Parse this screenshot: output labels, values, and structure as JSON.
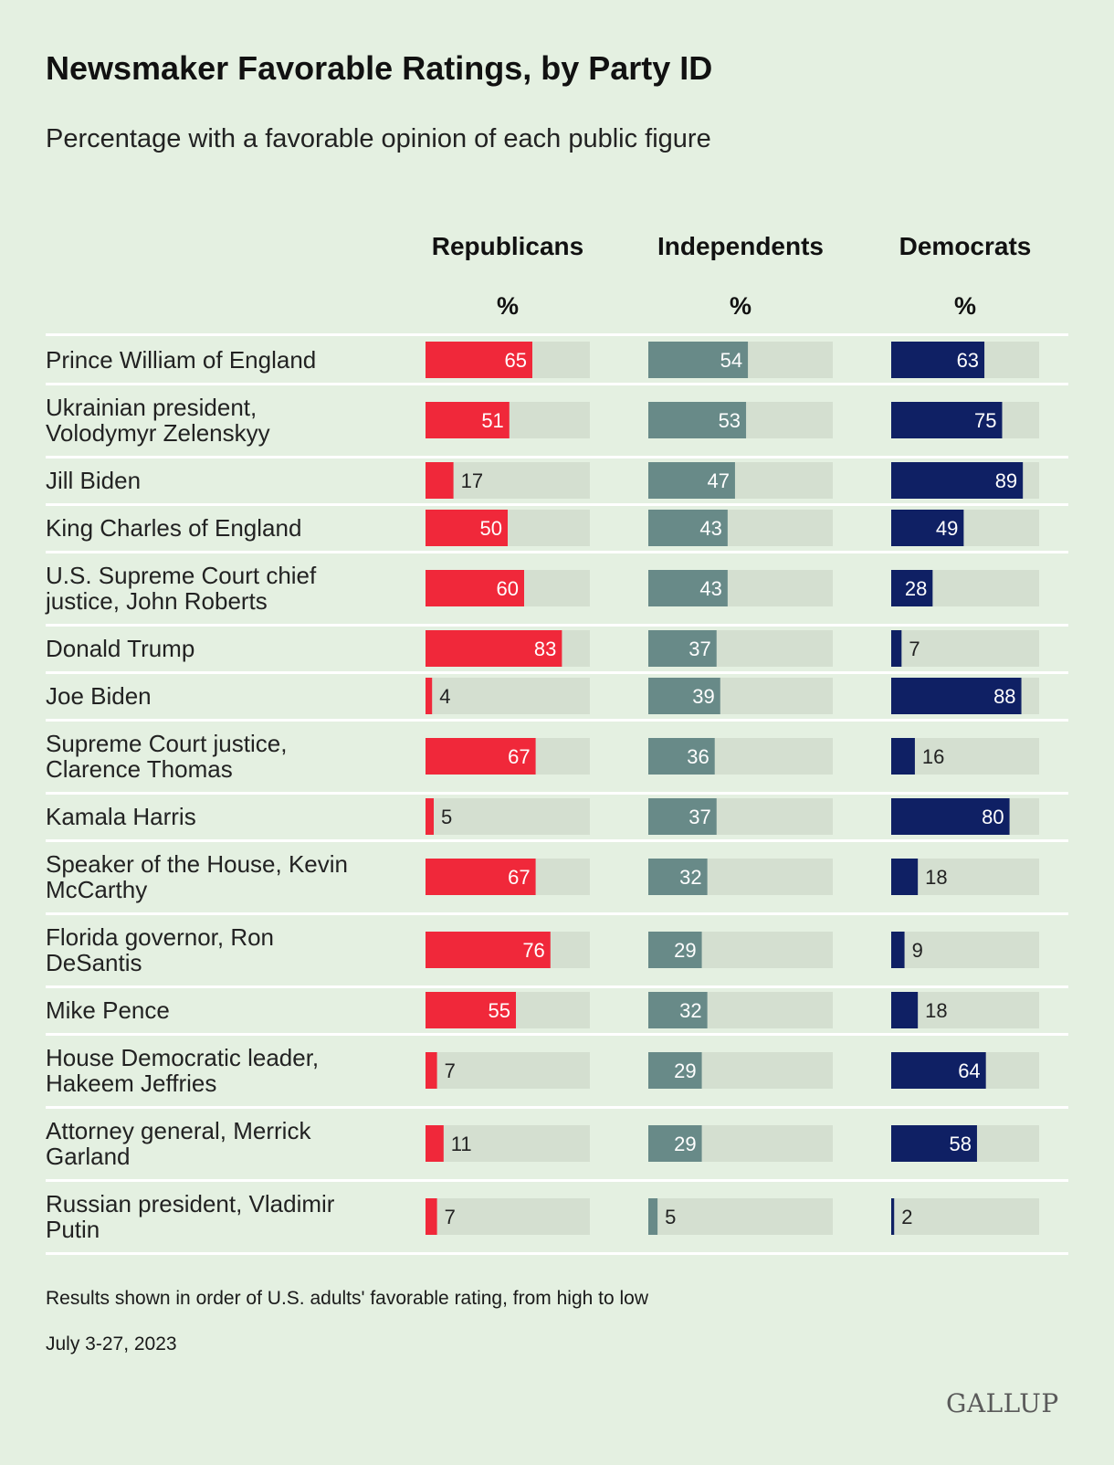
{
  "chart_data": {
    "type": "bar",
    "title": "Newsmaker Favorable Ratings, by Party ID",
    "subtitle": "Percentage with a favorable opinion of each public figure",
    "unit_label": "%",
    "xlim": [
      0,
      100
    ],
    "categories": [
      "Prince William of England",
      "Ukrainian president, Volodymyr Zelenskyy",
      "Jill Biden",
      "King Charles of England",
      "U.S. Supreme Court chief justice, John Roberts",
      "Donald Trump",
      "Joe Biden",
      "Supreme Court justice, Clarence Thomas",
      "Kamala Harris",
      "Speaker of the House, Kevin McCarthy",
      "Florida governor, Ron DeSantis",
      "Mike Pence",
      "House Democratic leader, Hakeem Jeffries",
      "Attorney general, Merrick Garland",
      "Russian president, Vladimir Putin"
    ],
    "category_lines": [
      [
        "Prince William of England"
      ],
      [
        "Ukrainian president,",
        "Volodymyr Zelenskyy"
      ],
      [
        "Jill Biden"
      ],
      [
        "King Charles of England"
      ],
      [
        "U.S. Supreme Court chief",
        "justice, John Roberts"
      ],
      [
        "Donald Trump"
      ],
      [
        "Joe Biden"
      ],
      [
        "Supreme Court justice,",
        "Clarence Thomas"
      ],
      [
        "Kamala Harris"
      ],
      [
        "Speaker of the House, Kevin",
        "McCarthy"
      ],
      [
        "Florida governor, Ron",
        "DeSantis"
      ],
      [
        "Mike Pence"
      ],
      [
        "House Democratic leader,",
        "Hakeem Jeffries"
      ],
      [
        "Attorney general, Merrick",
        "Garland"
      ],
      [
        "Russian president, Vladimir",
        "Putin"
      ]
    ],
    "series": [
      {
        "name": "Republicans",
        "color": "#f0283a",
        "values": [
          65,
          51,
          17,
          50,
          60,
          83,
          4,
          67,
          5,
          67,
          76,
          55,
          7,
          11,
          7
        ]
      },
      {
        "name": "Independents",
        "color": "#688a88",
        "values": [
          54,
          53,
          47,
          43,
          43,
          37,
          39,
          36,
          37,
          32,
          29,
          32,
          29,
          29,
          5
        ]
      },
      {
        "name": "Democrats",
        "color": "#0f2064",
        "values": [
          63,
          75,
          89,
          49,
          28,
          7,
          88,
          16,
          80,
          18,
          9,
          18,
          64,
          58,
          2
        ]
      }
    ],
    "track_color": "#d4dfd0",
    "divider_color": "#ffffff"
  },
  "footnote": "Results shown in order of U.S. adults' favorable rating, from high to low",
  "date": "July 3-27, 2023",
  "logo_text": "GALLUP"
}
